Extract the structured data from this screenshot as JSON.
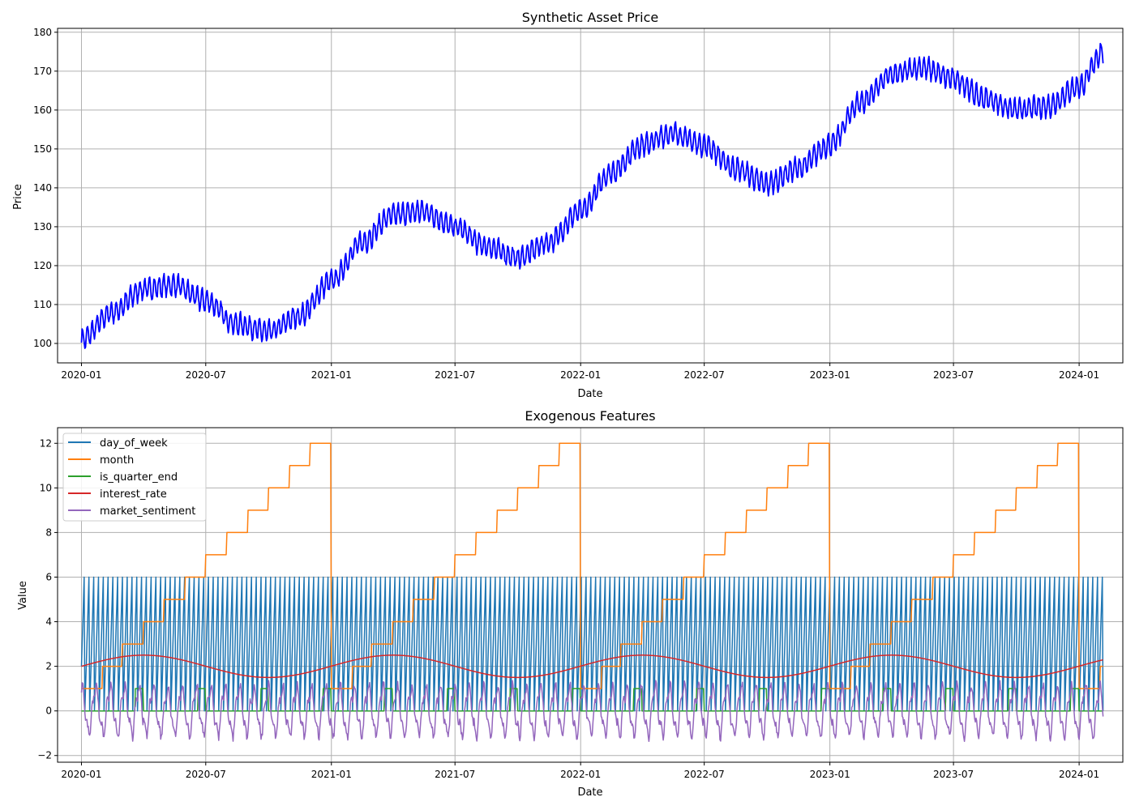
{
  "chart_data": [
    {
      "type": "line",
      "title": "Synthetic Asset Price",
      "xlabel": "Date",
      "ylabel": "Price",
      "x_range": [
        "2019-11-27",
        "2024-03-05"
      ],
      "ylim": [
        95,
        181
      ],
      "x_ticks": [
        "2020-01",
        "2020-07",
        "2021-01",
        "2021-07",
        "2022-01",
        "2022-07",
        "2023-01",
        "2023-07",
        "2024-01"
      ],
      "y_ticks": [
        100,
        110,
        120,
        130,
        140,
        150,
        160,
        170,
        180
      ],
      "grid": true,
      "series": [
        {
          "color": "#0000ff",
          "description": "daily price with weekly oscillation of about ±3",
          "x": [
            "2020-01-01",
            "2020-02-15",
            "2020-04-01",
            "2020-05-15",
            "2020-07-01",
            "2020-08-15",
            "2020-10-01",
            "2020-11-15",
            "2021-01-01",
            "2021-02-15",
            "2021-04-01",
            "2021-05-15",
            "2021-07-01",
            "2021-08-15",
            "2021-10-01",
            "2021-11-15",
            "2022-01-01",
            "2022-02-15",
            "2022-04-01",
            "2022-05-15",
            "2022-07-01",
            "2022-08-15",
            "2022-10-01",
            "2022-11-15",
            "2023-01-01",
            "2023-02-15",
            "2023-04-01",
            "2023-05-15",
            "2023-07-01",
            "2023-08-15",
            "2023-10-01",
            "2023-11-15",
            "2024-01-01",
            "2024-02-05"
          ],
          "values": [
            101,
            108,
            114,
            115,
            111,
            105,
            103,
            107,
            116,
            126,
            133,
            134,
            130,
            125,
            122,
            126,
            134,
            144,
            151,
            154,
            151,
            145,
            141,
            145,
            151,
            162,
            169,
            171,
            168,
            163,
            160,
            161,
            166,
            175
          ]
        }
      ]
    },
    {
      "type": "line",
      "title": "Exogenous Features",
      "xlabel": "Date",
      "ylabel": "Value",
      "x_range": [
        "2019-11-27",
        "2024-03-05"
      ],
      "ylim": [
        -2.3,
        12.7
      ],
      "x_ticks": [
        "2020-01",
        "2020-07",
        "2021-01",
        "2021-07",
        "2022-01",
        "2022-07",
        "2023-01",
        "2023-07",
        "2024-01"
      ],
      "y_ticks": [
        -2,
        0,
        2,
        4,
        6,
        8,
        10,
        12
      ],
      "grid": true,
      "legend_position": "upper-left",
      "x_start": "2020-01-01",
      "x_end": "2024-02-05",
      "series": [
        {
          "name": "day_of_week",
          "color": "#1f77b4",
          "rule": "weekday index 0-6, oscillating daily"
        },
        {
          "name": "month",
          "color": "#ff7f0e",
          "rule": "calendar month 1-12, step function"
        },
        {
          "name": "is_quarter_end",
          "color": "#2ca02c",
          "rule": "1 during the last days of each quarter, else 0"
        },
        {
          "name": "interest_rate",
          "color": "#d62728",
          "rule": "smooth sine: 2 + 0.5*sin(2π·t/365 days)"
        },
        {
          "name": "market_sentiment",
          "color": "#9467bd",
          "rule": "noisy oscillation roughly between -1.5 and 1.4, period about 3 weeks"
        }
      ]
    }
  ]
}
